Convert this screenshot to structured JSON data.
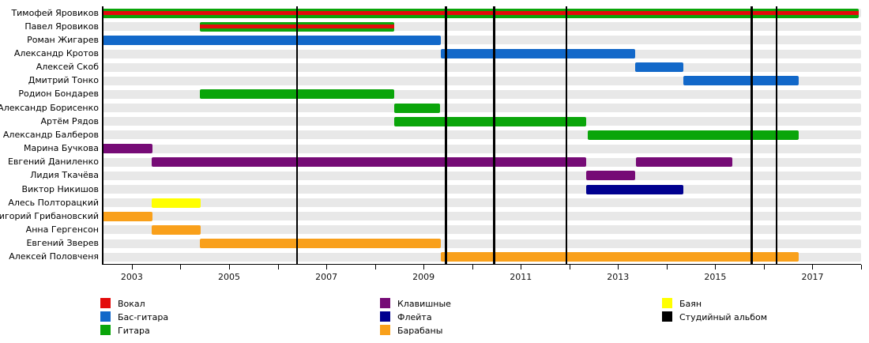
{
  "chart_data": {
    "type": "gantt-timeline",
    "title": "",
    "x_axis": {
      "min": 2002.4,
      "max": 2018.0,
      "labeled_ticks": [
        2003,
        2005,
        2007,
        2009,
        2011,
        2013,
        2015,
        2017
      ],
      "minor_ticks": [
        2003,
        2004,
        2005,
        2006,
        2007,
        2008,
        2009,
        2010,
        2011,
        2012,
        2013,
        2014,
        2015,
        2016,
        2017,
        2018
      ],
      "grid": false
    },
    "colors": {
      "vocals": "#e30b0b",
      "bass": "#1268c9",
      "guitar": "#0aa50a",
      "keyboards": "#760b76",
      "flute": "#00008f",
      "drums": "#f9a01b",
      "bayan": "#ffff00",
      "album": "#000000",
      "row_stripe": "#e8e8e8"
    },
    "members": [
      {
        "name": "Тимофей Яровиков",
        "bars": [
          {
            "instrument": "guitar",
            "start": 2002.4,
            "end": 2017.95
          }
        ],
        "overlay": {
          "instrument": "vocals",
          "start": 2002.4,
          "end": 2017.95
        }
      },
      {
        "name": "Павел Яровиков",
        "bars": [
          {
            "instrument": "guitar",
            "start": 2004.4,
            "end": 2008.4
          }
        ],
        "overlay": {
          "instrument": "vocals",
          "start": 2004.4,
          "end": 2008.4
        }
      },
      {
        "name": "Роман Жигарев",
        "bars": [
          {
            "instrument": "bass",
            "start": 2002.4,
            "end": 2009.35
          }
        ]
      },
      {
        "name": "Александр Кротов",
        "bars": [
          {
            "instrument": "bass",
            "start": 2009.35,
            "end": 2013.36
          }
        ]
      },
      {
        "name": "Алексей Скоб",
        "bars": [
          {
            "instrument": "bass",
            "start": 2013.36,
            "end": 2014.35
          }
        ]
      },
      {
        "name": "Дмитрий Тонко",
        "bars": [
          {
            "instrument": "bass",
            "start": 2014.35,
            "end": 2016.72
          }
        ]
      },
      {
        "name": "Родион Бондарев",
        "bars": [
          {
            "instrument": "guitar",
            "start": 2004.4,
            "end": 2008.4
          }
        ]
      },
      {
        "name": "Александр Борисенко",
        "bars": [
          {
            "instrument": "guitar",
            "start": 2008.4,
            "end": 2009.34
          }
        ]
      },
      {
        "name": "Артём Рядов",
        "bars": [
          {
            "instrument": "guitar",
            "start": 2008.4,
            "end": 2012.35
          }
        ]
      },
      {
        "name": "Александр Балберов",
        "bars": [
          {
            "instrument": "guitar",
            "start": 2012.37,
            "end": 2016.72
          }
        ]
      },
      {
        "name": "Марина Бучкова",
        "bars": [
          {
            "instrument": "keyboards",
            "start": 2002.4,
            "end": 2003.42
          }
        ]
      },
      {
        "name": "Евгений Даниленко",
        "bars": [
          {
            "instrument": "keyboards",
            "start": 2003.4,
            "end": 2012.35
          },
          {
            "instrument": "keyboards",
            "start": 2013.37,
            "end": 2015.35
          }
        ]
      },
      {
        "name": "Лидия Ткачёва",
        "bars": [
          {
            "instrument": "keyboards",
            "start": 2012.35,
            "end": 2013.36
          }
        ]
      },
      {
        "name": "Виктор Никишов",
        "bars": [
          {
            "instrument": "flute",
            "start": 2012.35,
            "end": 2014.35
          }
        ]
      },
      {
        "name": "Алесь Полторацкий",
        "bars": [
          {
            "instrument": "bayan",
            "start": 2003.4,
            "end": 2004.42
          }
        ]
      },
      {
        "name": "Григорий Грибановский",
        "bars": [
          {
            "instrument": "drums",
            "start": 2002.4,
            "end": 2003.42
          }
        ]
      },
      {
        "name": "Анна Гергенсон",
        "bars": [
          {
            "instrument": "drums",
            "start": 2003.4,
            "end": 2004.42
          }
        ]
      },
      {
        "name": "Евгений Зверев",
        "bars": [
          {
            "instrument": "drums",
            "start": 2004.4,
            "end": 2009.36
          }
        ]
      },
      {
        "name": "Алексей Половченя",
        "bars": [
          {
            "instrument": "drums",
            "start": 2009.35,
            "end": 2016.72
          }
        ]
      }
    ],
    "album_years": [
      2006.4,
      2009.46,
      2010.45,
      2011.94,
      2015.75,
      2016.26
    ],
    "legend": {
      "columns": [
        [
          {
            "label": "Вокал",
            "key": "vocals"
          },
          {
            "label": "Бас-гитара",
            "key": "bass"
          },
          {
            "label": "Гитара",
            "key": "guitar"
          }
        ],
        [
          {
            "label": "Клавишные",
            "key": "keyboards"
          },
          {
            "label": "Флейта",
            "key": "flute"
          },
          {
            "label": "Барабаны",
            "key": "drums"
          }
        ],
        [
          {
            "label": "Баян",
            "key": "bayan"
          },
          {
            "label": "Студийный альбом",
            "key": "album"
          }
        ]
      ]
    }
  }
}
